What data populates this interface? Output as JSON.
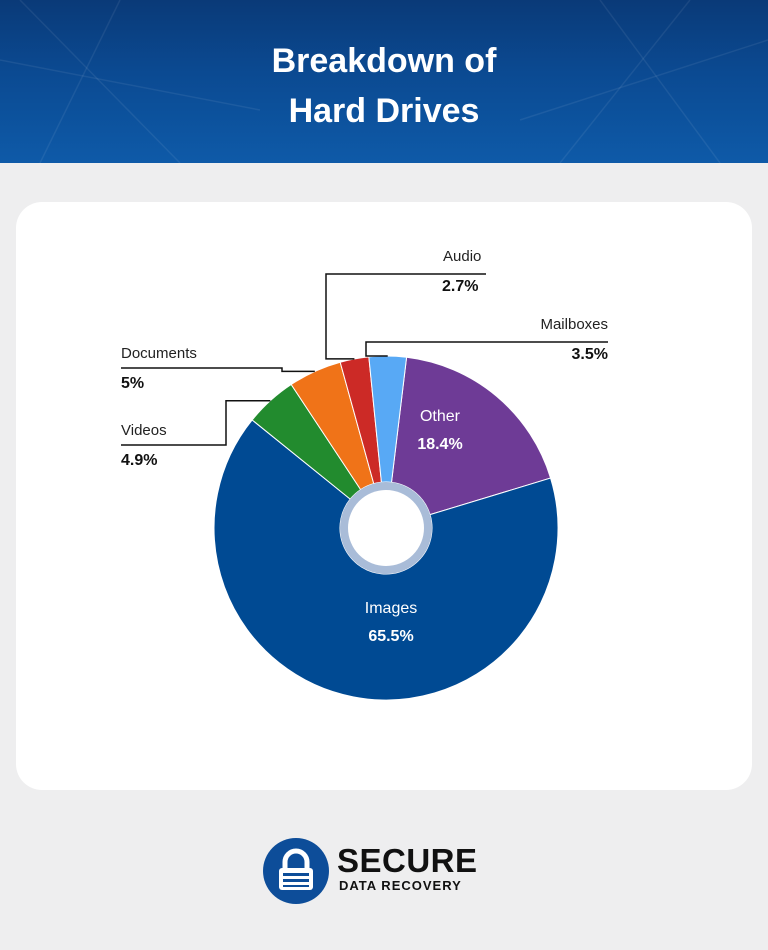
{
  "title_line1": "Breakdown of",
  "title_line2": "Hard Drives",
  "colors": {
    "header": "#0b4a92",
    "Images": "#004a93",
    "Videos": "#228b2e",
    "Documents": "#f07318",
    "Audio": "#cc2a26",
    "Mailboxes": "#58a9f5",
    "Other": "#6e3b96"
  },
  "chart_data": {
    "type": "pie",
    "slices": [
      {
        "label": "Other",
        "value": 18.4,
        "display": "18.4%"
      },
      {
        "label": "Images",
        "value": 65.5,
        "display": "65.5%"
      },
      {
        "label": "Videos",
        "value": 4.9,
        "display": "4.9%"
      },
      {
        "label": "Documents",
        "value": 5,
        "display": "5%"
      },
      {
        "label": "Audio",
        "value": 2.7,
        "display": "2.7%"
      },
      {
        "label": "Mailboxes",
        "value": 3.5,
        "display": "3.5%"
      }
    ]
  },
  "logo": {
    "line1": "SECURE",
    "line2": "DATA RECOVERY",
    "icon": "padlock-icon"
  }
}
